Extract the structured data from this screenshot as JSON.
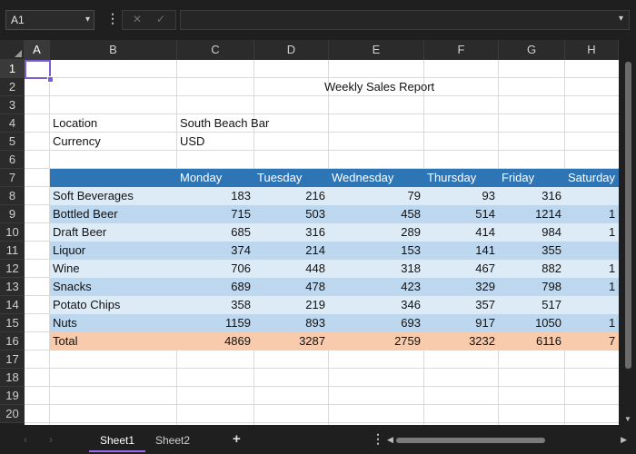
{
  "formula_bar": {
    "cell_reference": "A1",
    "formula_value": "",
    "cancel_icon": "✕",
    "confirm_icon": "✓"
  },
  "columns": [
    "A",
    "B",
    "C",
    "D",
    "E",
    "F",
    "G",
    "H"
  ],
  "rows": [
    "1",
    "2",
    "3",
    "4",
    "5",
    "6",
    "7",
    "8",
    "9",
    "10",
    "11",
    "12",
    "13",
    "14",
    "15",
    "16",
    "17",
    "18",
    "19",
    "20"
  ],
  "sheet": {
    "title": "Weekly Sales Report",
    "location_label": "Location",
    "location_value": "South Beach Bar",
    "currency_label": "Currency",
    "currency_value": "USD",
    "table_headers": [
      "Monday",
      "Tuesday",
      "Wednesday",
      "Thursday",
      "Friday",
      "Saturday"
    ],
    "table_rows": [
      {
        "label": "Soft Beverages",
        "values": [
          "183",
          "216",
          "79",
          "93",
          "316",
          ""
        ],
        "h_fragment": ""
      },
      {
        "label": "Bottled Beer",
        "values": [
          "715",
          "503",
          "458",
          "514",
          "1214",
          ""
        ],
        "h_fragment": "1"
      },
      {
        "label": "Draft Beer",
        "values": [
          "685",
          "316",
          "289",
          "414",
          "984",
          ""
        ],
        "h_fragment": "1"
      },
      {
        "label": "Liquor",
        "values": [
          "374",
          "214",
          "153",
          "141",
          "355",
          ""
        ],
        "h_fragment": ""
      },
      {
        "label": "Wine",
        "values": [
          "706",
          "448",
          "318",
          "467",
          "882",
          ""
        ],
        "h_fragment": "1"
      },
      {
        "label": "Snacks",
        "values": [
          "689",
          "478",
          "423",
          "329",
          "798",
          ""
        ],
        "h_fragment": "1"
      },
      {
        "label": "Potato Chips",
        "values": [
          "358",
          "219",
          "346",
          "357",
          "517",
          ""
        ],
        "h_fragment": ""
      },
      {
        "label": "Nuts",
        "values": [
          "1159",
          "893",
          "693",
          "917",
          "1050",
          ""
        ],
        "h_fragment": "1"
      }
    ],
    "total_row": {
      "label": "Total",
      "values": [
        "4869",
        "3287",
        "2759",
        "3232",
        "6116",
        ""
      ],
      "h_fragment": "7"
    }
  },
  "tabs": [
    {
      "label": "Sheet1",
      "active": true
    },
    {
      "label": "Sheet2",
      "active": false
    }
  ],
  "add_tab_label": "+",
  "colors": {
    "header_band": "#2e75b6",
    "band_light": "#ddebf7",
    "band_mid": "#bdd7ee",
    "total_band": "#f8cbad",
    "selection": "#7b5cd6"
  }
}
